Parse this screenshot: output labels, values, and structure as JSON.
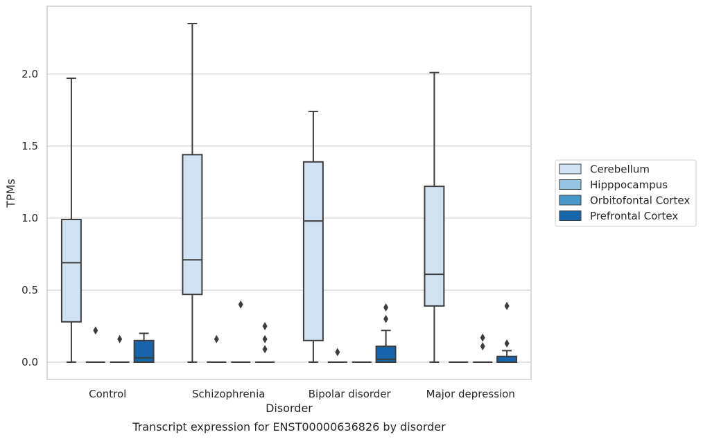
{
  "chart_data": {
    "type": "box",
    "xlabel": "Disorder",
    "ylabel": "TPMs",
    "caption": "Transcript expression for ENST00000636826 by disorder",
    "ylim": [
      -0.12,
      2.47
    ],
    "yticks": [
      "0.0",
      "0.5",
      "1.0",
      "1.5",
      "2.0"
    ],
    "yticks_values": [
      0.0,
      0.5,
      1.0,
      1.5,
      2.0
    ],
    "grid": "horizontal",
    "legend_position": "right",
    "categories": [
      "Control",
      "Schizophrenia",
      "Bipolar disorder",
      "Major depression"
    ],
    "series": [
      {
        "name": "Cerebellum",
        "color": "#d0e1f2",
        "boxes": [
          {
            "min": 0.0,
            "q1": 0.28,
            "median": 0.69,
            "q3": 0.99,
            "max": 1.97,
            "outliers": []
          },
          {
            "min": 0.0,
            "q1": 0.47,
            "median": 0.71,
            "q3": 1.44,
            "max": 2.35,
            "outliers": []
          },
          {
            "min": 0.0,
            "q1": 0.15,
            "median": 0.98,
            "q3": 1.39,
            "max": 1.74,
            "outliers": []
          },
          {
            "min": 0.0,
            "q1": 0.39,
            "median": 0.61,
            "q3": 1.22,
            "max": 2.01,
            "outliers": []
          }
        ]
      },
      {
        "name": "Hipppocampus",
        "color": "#94c4df",
        "boxes": [
          {
            "min": 0.0,
            "q1": 0.0,
            "median": 0.0,
            "q3": 0.0,
            "max": 0.0,
            "outliers": [
              0.22
            ]
          },
          {
            "min": 0.0,
            "q1": 0.0,
            "median": 0.0,
            "q3": 0.0,
            "max": 0.0,
            "outliers": [
              0.16
            ]
          },
          {
            "min": 0.0,
            "q1": 0.0,
            "median": 0.0,
            "q3": 0.0,
            "max": 0.0,
            "outliers": [
              0.07
            ]
          },
          {
            "min": 0.0,
            "q1": 0.0,
            "median": 0.0,
            "q3": 0.0,
            "max": 0.0,
            "outliers": []
          }
        ]
      },
      {
        "name": "Orbitofontal Cortex",
        "color": "#4a98c9",
        "boxes": [
          {
            "min": 0.0,
            "q1": 0.0,
            "median": 0.0,
            "q3": 0.0,
            "max": 0.0,
            "outliers": [
              0.16
            ]
          },
          {
            "min": 0.0,
            "q1": 0.0,
            "median": 0.0,
            "q3": 0.0,
            "max": 0.0,
            "outliers": [
              0.4
            ]
          },
          {
            "min": 0.0,
            "q1": 0.0,
            "median": 0.0,
            "q3": 0.0,
            "max": 0.0,
            "outliers": []
          },
          {
            "min": 0.0,
            "q1": 0.0,
            "median": 0.0,
            "q3": 0.0,
            "max": 0.0,
            "outliers": [
              0.17,
              0.11
            ]
          }
        ]
      },
      {
        "name": "Prefrontal Cortex",
        "color": "#1764ab",
        "boxes": [
          {
            "min": 0.0,
            "q1": 0.0,
            "median": 0.03,
            "q3": 0.15,
            "max": 0.2,
            "outliers": []
          },
          {
            "min": 0.0,
            "q1": 0.0,
            "median": 0.0,
            "q3": 0.0,
            "max": 0.0,
            "outliers": [
              0.25,
              0.16,
              0.09
            ]
          },
          {
            "min": 0.0,
            "q1": 0.0,
            "median": 0.02,
            "q3": 0.11,
            "max": 0.22,
            "outliers": [
              0.3,
              0.38
            ]
          },
          {
            "min": 0.0,
            "q1": 0.0,
            "median": 0.0,
            "q3": 0.04,
            "max": 0.08,
            "outliers": [
              0.13,
              0.39
            ]
          }
        ]
      }
    ]
  }
}
